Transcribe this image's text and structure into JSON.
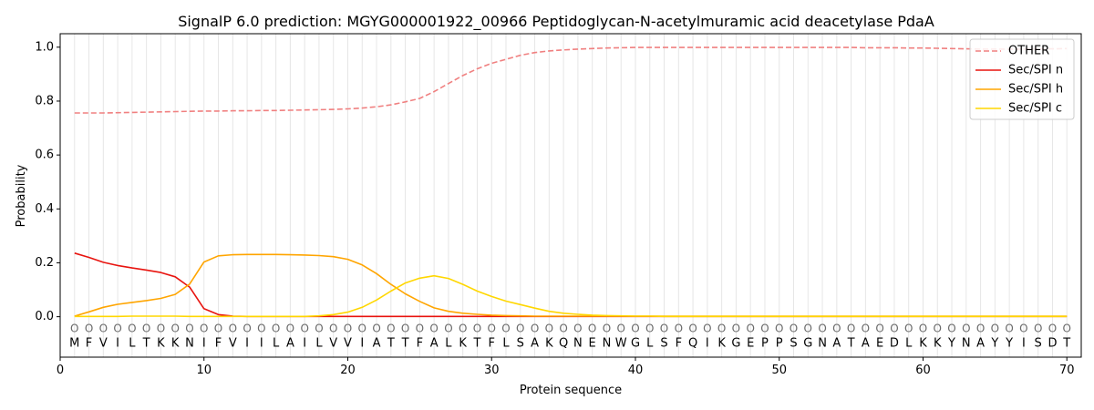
{
  "chart_data": {
    "type": "line",
    "title": "SignalP 6.0 prediction: MGYG000001922_00966 Peptidoglycan-N-acetylmuramic acid deacetylase PdaA",
    "xlabel": "Protein sequence",
    "ylabel": "Probability",
    "xlim": [
      0,
      71
    ],
    "ylim": [
      -0.15,
      1.05
    ],
    "xticks": [
      0,
      10,
      20,
      30,
      40,
      50,
      60,
      70
    ],
    "yticks": [
      0.0,
      0.2,
      0.4,
      0.6,
      0.8,
      1.0
    ],
    "xtick_labels": [
      "0",
      "10",
      "20",
      "30",
      "40",
      "50",
      "60",
      "70"
    ],
    "ytick_labels": [
      "0.0",
      "0.2",
      "0.4",
      "0.6",
      "0.8",
      "1.0"
    ],
    "grid": "vertical lines at each residue",
    "legend_position": "top-right",
    "sequence": [
      "M",
      "F",
      "V",
      "I",
      "L",
      "T",
      "K",
      "K",
      "N",
      "I",
      "F",
      "V",
      "I",
      "I",
      "L",
      "A",
      "I",
      "L",
      "V",
      "V",
      "I",
      "A",
      "T",
      "T",
      "F",
      "A",
      "L",
      "K",
      "T",
      "F",
      "L",
      "S",
      "A",
      "K",
      "Q",
      "N",
      "E",
      "N",
      "W",
      "G",
      "L",
      "S",
      "F",
      "Q",
      "I",
      "K",
      "G",
      "E",
      "P",
      "P",
      "S",
      "G",
      "N",
      "A",
      "T",
      "A",
      "E",
      "D",
      "L",
      "K",
      "K",
      "Y",
      "N",
      "A",
      "Y",
      "Y",
      "I",
      "S",
      "D",
      "T"
    ],
    "state_marks": [
      "O",
      "O",
      "O",
      "O",
      "O",
      "O",
      "O",
      "O",
      "O",
      "O",
      "O",
      "O",
      "O",
      "O",
      "O",
      "O",
      "O",
      "O",
      "O",
      "O",
      "O",
      "O",
      "O",
      "O",
      "O",
      "O",
      "O",
      "O",
      "O",
      "O",
      "O",
      "O",
      "O",
      "O",
      "O",
      "O",
      "O",
      "O",
      "O",
      "O",
      "O",
      "O",
      "O",
      "O",
      "O",
      "O",
      "O",
      "O",
      "O",
      "O",
      "O",
      "O",
      "O",
      "O",
      "O",
      "O",
      "O",
      "O",
      "O",
      "O",
      "O",
      "O",
      "O",
      "O",
      "O",
      "O",
      "O",
      "O",
      "O",
      "O"
    ],
    "series": [
      {
        "name": "OTHER",
        "color": "#f08080",
        "dash": "dashed",
        "values": [
          0.756,
          0.756,
          0.756,
          0.757,
          0.758,
          0.759,
          0.76,
          0.761,
          0.762,
          0.763,
          0.763,
          0.764,
          0.764,
          0.765,
          0.765,
          0.766,
          0.767,
          0.768,
          0.769,
          0.771,
          0.774,
          0.779,
          0.786,
          0.797,
          0.81,
          0.835,
          0.865,
          0.895,
          0.92,
          0.94,
          0.955,
          0.97,
          0.98,
          0.986,
          0.99,
          0.993,
          0.995,
          0.997,
          0.998,
          0.999,
          0.999,
          0.999,
          0.999,
          0.999,
          0.999,
          0.999,
          0.999,
          0.999,
          0.999,
          0.999,
          0.999,
          0.999,
          0.999,
          0.999,
          0.999,
          0.998,
          0.998,
          0.998,
          0.997,
          0.997,
          0.996,
          0.995,
          0.994,
          0.993,
          0.993,
          0.993,
          0.993,
          0.994,
          0.994,
          0.995
        ]
      },
      {
        "name": "Sec/SPI n",
        "color": "#e8140f",
        "dash": "solid",
        "values": [
          0.236,
          0.22,
          0.202,
          0.19,
          0.181,
          0.173,
          0.164,
          0.148,
          0.11,
          0.03,
          0.008,
          0.002,
          0.001,
          0.001,
          0.001,
          0.001,
          0.001,
          0.001,
          0.001,
          0.001,
          0.001,
          0.001,
          0.001,
          0.001,
          0.001,
          0.001,
          0.001,
          0.001,
          0.001,
          0.001,
          0.001,
          0.001,
          0.001,
          0.001,
          0.001,
          0.001,
          0.001,
          0.001,
          0.001,
          0.001,
          0.001,
          0.001,
          0.001,
          0.001,
          0.001,
          0.001,
          0.001,
          0.001,
          0.001,
          0.001,
          0.001,
          0.001,
          0.001,
          0.001,
          0.001,
          0.001,
          0.001,
          0.001,
          0.001,
          0.001,
          0.001,
          0.001,
          0.001,
          0.001,
          0.001,
          0.001,
          0.001,
          0.001,
          0.001,
          0.001
        ]
      },
      {
        "name": "Sec/SPI h",
        "color": "#ffa500",
        "dash": "solid",
        "values": [
          0.002,
          0.018,
          0.035,
          0.046,
          0.053,
          0.06,
          0.068,
          0.083,
          0.121,
          0.203,
          0.226,
          0.23,
          0.231,
          0.231,
          0.231,
          0.23,
          0.229,
          0.227,
          0.223,
          0.213,
          0.192,
          0.16,
          0.12,
          0.085,
          0.057,
          0.033,
          0.02,
          0.013,
          0.009,
          0.006,
          0.004,
          0.003,
          0.002,
          0.002,
          0.002,
          0.002,
          0.002,
          0.002,
          0.002,
          0.002,
          0.002,
          0.002,
          0.002,
          0.002,
          0.002,
          0.002,
          0.002,
          0.002,
          0.002,
          0.002,
          0.002,
          0.002,
          0.002,
          0.002,
          0.002,
          0.002,
          0.002,
          0.002,
          0.002,
          0.002,
          0.002,
          0.002,
          0.002,
          0.002,
          0.002,
          0.002,
          0.002,
          0.002,
          0.002,
          0.002
        ]
      },
      {
        "name": "Sec/SPI c",
        "color": "#ffd700",
        "dash": "solid",
        "values": [
          0.001,
          0.001,
          0.001,
          0.001,
          0.002,
          0.002,
          0.002,
          0.002,
          0.001,
          0.001,
          0.001,
          0.001,
          0.001,
          0.001,
          0.001,
          0.001,
          0.001,
          0.003,
          0.008,
          0.017,
          0.035,
          0.062,
          0.095,
          0.125,
          0.143,
          0.152,
          0.142,
          0.12,
          0.095,
          0.075,
          0.058,
          0.045,
          0.032,
          0.02,
          0.013,
          0.009,
          0.006,
          0.004,
          0.003,
          0.002,
          0.002,
          0.001,
          0.001,
          0.001,
          0.001,
          0.001,
          0.001,
          0.001,
          0.001,
          0.001,
          0.001,
          0.001,
          0.001,
          0.001,
          0.001,
          0.001,
          0.001,
          0.001,
          0.001,
          0.001,
          0.001,
          0.001,
          0.001,
          0.001,
          0.001,
          0.001,
          0.001,
          0.001,
          0.001,
          0.001
        ]
      }
    ]
  }
}
